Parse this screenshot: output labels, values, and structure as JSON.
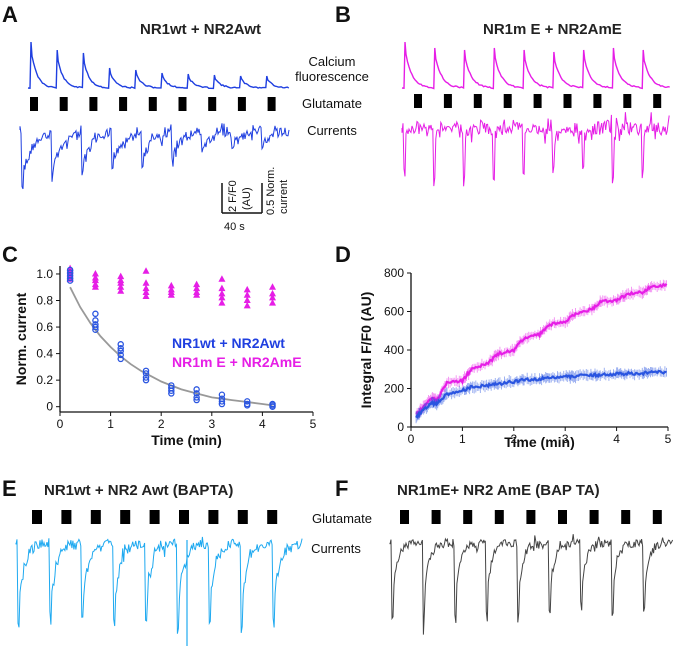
{
  "colors": {
    "blue": "#1f3fe0",
    "magenta": "#e61ee6",
    "cyan": "#1ea9f0",
    "grey": "#444444",
    "fit": "#999999",
    "open_blue": "#2a55e0"
  },
  "panel_labels": [
    "A",
    "B",
    "C",
    "D",
    "E",
    "F"
  ],
  "panelA": {
    "title": "NR1wt  + NR2Awt",
    "calcium_label_1": "Calcium",
    "calcium_label_2": "fluorescence",
    "glutamate_label": "Glutamate",
    "currents_label": "Currents",
    "scale_y1": "2 F/F0",
    "scale_y1b": "(AU)",
    "scale_y2": "0.5 Norm.",
    "scale_y2b": "current",
    "scale_x": "40 s"
  },
  "panelB": {
    "title": "NR1m  E  + NR2AmE"
  },
  "panelE": {
    "title": "NR1wt  + NR2    Awt (BAPTA)",
    "glutamate_label": "Glutamate",
    "currents_label": "Currents"
  },
  "panelF": {
    "title": "NR1mE+ NR2     AmE (BAP   TA)"
  },
  "chart_data": [
    {
      "panel": "C",
      "type": "scatter",
      "xlabel": "Time (min)",
      "ylabel": "Norm. current",
      "xlim": [
        0,
        5
      ],
      "ylim": [
        -0.04,
        1.06
      ],
      "xticks": [
        0,
        1,
        2,
        3,
        4,
        5
      ],
      "yticks": [
        0,
        0.2,
        0.4,
        0.6,
        0.8,
        1.0
      ],
      "xtick_labels": [
        "0",
        "1",
        "2",
        "3",
        "4",
        "5"
      ],
      "ytick_labels": [
        "0",
        "0.2",
        "0.4",
        "0.6",
        "0.8",
        "1.0"
      ],
      "series": [
        {
          "name": "NR1wt  + NR2Awt",
          "marker": "circle",
          "x": [
            0.2,
            0.2,
            0.2,
            0.2,
            0.2,
            0.7,
            0.7,
            0.7,
            0.7,
            0.7,
            1.2,
            1.2,
            1.2,
            1.2,
            1.2,
            1.7,
            1.7,
            1.7,
            1.7,
            2.2,
            2.2,
            2.2,
            2.2,
            2.7,
            2.7,
            2.7,
            2.7,
            3.2,
            3.2,
            3.2,
            3.2,
            3.7,
            3.7,
            3.7,
            4.2,
            4.2,
            4.2
          ],
          "y": [
            1.03,
            1.01,
            0.99,
            0.97,
            0.95,
            0.7,
            0.65,
            0.62,
            0.6,
            0.58,
            0.47,
            0.44,
            0.42,
            0.39,
            0.36,
            0.27,
            0.25,
            0.22,
            0.2,
            0.16,
            0.14,
            0.12,
            0.1,
            0.13,
            0.1,
            0.07,
            0.05,
            0.09,
            0.06,
            0.04,
            0.02,
            0.04,
            0.02,
            0.01,
            0.02,
            0.01,
            0.0
          ]
        },
        {
          "name": "NR1m  E  + NR2AmE",
          "marker": "triangle",
          "x": [
            0.2,
            0.2,
            0.2,
            0.2,
            0.2,
            0.7,
            0.7,
            0.7,
            0.7,
            0.7,
            1.2,
            1.2,
            1.2,
            1.2,
            1.2,
            1.7,
            1.7,
            1.7,
            1.7,
            1.7,
            2.2,
            2.2,
            2.2,
            2.2,
            2.7,
            2.7,
            2.7,
            2.7,
            3.2,
            3.2,
            3.2,
            3.2,
            3.2,
            3.7,
            3.7,
            3.7,
            3.7,
            4.2,
            4.2,
            4.2,
            4.2
          ],
          "y": [
            1.04,
            1.02,
            1.0,
            0.98,
            0.96,
            1.0,
            0.97,
            0.95,
            0.92,
            0.9,
            0.98,
            0.95,
            0.93,
            0.9,
            0.87,
            1.02,
            0.93,
            0.89,
            0.86,
            0.83,
            0.91,
            0.88,
            0.86,
            0.84,
            0.92,
            0.89,
            0.86,
            0.84,
            0.96,
            0.89,
            0.85,
            0.82,
            0.78,
            0.88,
            0.84,
            0.8,
            0.76,
            0.9,
            0.85,
            0.82,
            0.78
          ]
        }
      ],
      "fit": {
        "name": "exponential fit",
        "x": [
          0.2,
          0.4,
          0.6,
          0.8,
          1.0,
          1.2,
          1.4,
          1.6,
          1.8,
          2.0,
          2.2,
          2.4,
          2.6,
          2.8,
          3.0,
          3.2,
          3.4,
          3.6,
          3.8,
          4.0,
          4.2
        ],
        "y": [
          0.9,
          0.75,
          0.63,
          0.53,
          0.45,
          0.38,
          0.32,
          0.27,
          0.23,
          0.19,
          0.16,
          0.13,
          0.11,
          0.09,
          0.07,
          0.06,
          0.05,
          0.04,
          0.03,
          0.02,
          0.01
        ]
      }
    },
    {
      "panel": "D",
      "type": "line",
      "xlabel": "Time (min)",
      "ylabel": "Integral F/F0 (AU)",
      "xlim": [
        0,
        5
      ],
      "ylim": [
        0,
        800
      ],
      "xticks": [
        0,
        1,
        2,
        3,
        4,
        5
      ],
      "yticks": [
        0,
        200,
        400,
        600,
        800
      ],
      "xtick_labels": [
        "0",
        "1",
        "2",
        "3",
        "4",
        "5"
      ],
      "ytick_labels": [
        "0",
        "200",
        "400",
        "600",
        "800"
      ],
      "series": [
        {
          "name": "NR1m  E  + NR2AmE",
          "x": [
            0.1,
            0.2,
            0.4,
            0.5,
            0.7,
            1.0,
            1.2,
            1.5,
            1.7,
            2.0,
            2.2,
            2.5,
            2.7,
            3.0,
            3.2,
            3.5,
            3.7,
            4.0,
            4.2,
            4.5,
            4.7,
            5.0
          ],
          "y": [
            60,
            90,
            150,
            140,
            230,
            240,
            310,
            330,
            380,
            400,
            460,
            480,
            530,
            550,
            590,
            610,
            650,
            660,
            690,
            700,
            730,
            740
          ]
        },
        {
          "name": "NR1wt  + NR2Awt",
          "x": [
            0.1,
            0.2,
            0.4,
            0.5,
            0.7,
            1.0,
            1.2,
            1.5,
            1.7,
            2.0,
            2.2,
            2.5,
            2.7,
            3.0,
            3.2,
            3.5,
            3.7,
            4.0,
            4.2,
            4.5,
            4.7,
            5.0
          ],
          "y": [
            50,
            80,
            125,
            120,
            170,
            190,
            210,
            215,
            225,
            235,
            245,
            250,
            255,
            260,
            265,
            268,
            272,
            275,
            278,
            280,
            282,
            285
          ]
        }
      ]
    }
  ]
}
